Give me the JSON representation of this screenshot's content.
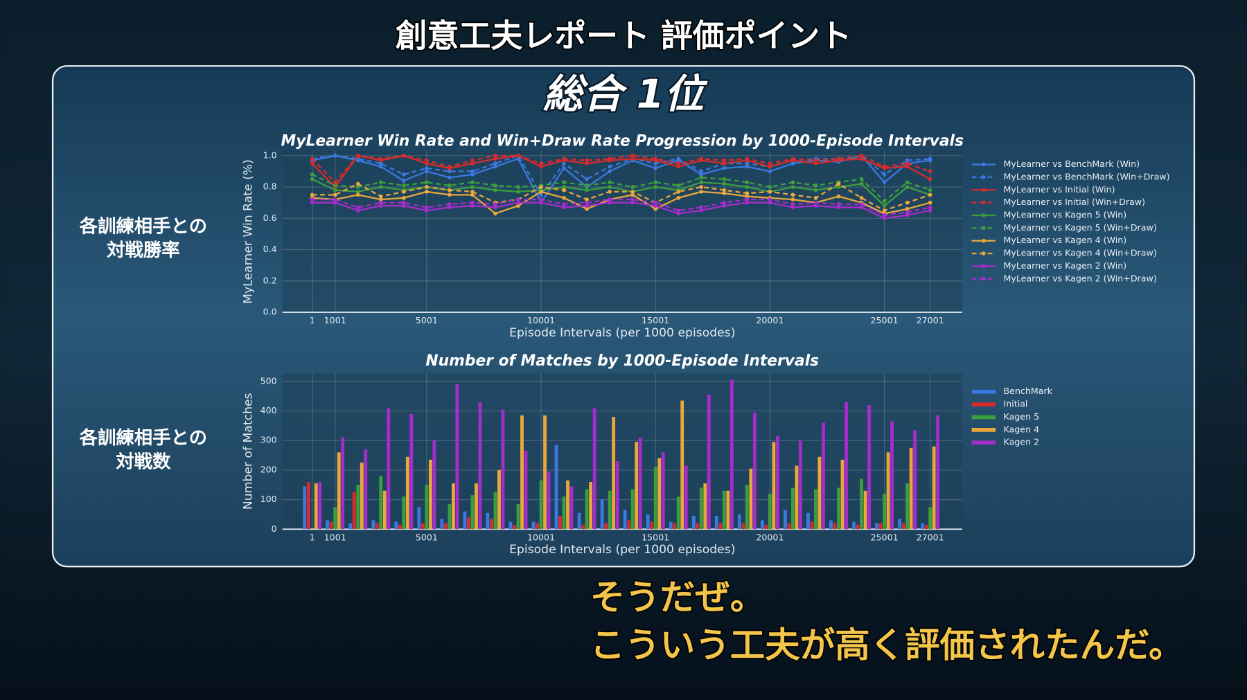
{
  "header": {
    "title": "創意工夫レポート 評価ポイント",
    "rank": "総合 1位"
  },
  "side_labels": [
    [
      "各訓練相手との",
      "対戦勝率"
    ],
    [
      "各訓練相手との",
      "対戦数"
    ]
  ],
  "subtitles": [
    "そうだぜ。",
    "こういう工夫が高く評価されたんだ。"
  ],
  "chart_data": [
    {
      "type": "line",
      "title": "MyLearner Win Rate and Win+Draw Rate Progression by 1000-Episode Intervals",
      "x_label": "Episode Intervals (per 1000 episodes)",
      "y_label": "MyLearner Win Rate (%)",
      "x": [
        1,
        1001,
        2001,
        3001,
        4001,
        5001,
        6001,
        7001,
        8001,
        9001,
        10001,
        11001,
        12001,
        13001,
        14001,
        15001,
        16001,
        17001,
        18001,
        19001,
        20001,
        21001,
        22001,
        23001,
        24001,
        25001,
        26001,
        27001
      ],
      "xlim": [
        -1300,
        28400
      ],
      "xticks": [
        1,
        1001,
        5001,
        10001,
        15001,
        20001,
        25001,
        27001
      ],
      "ylim": [
        0,
        1.03
      ],
      "yticks": [
        {
          "value": 0,
          "label": "0.0"
        },
        0.2,
        0.4,
        0.6,
        0.8,
        {
          "value": 1,
          "label": "1.0"
        }
      ],
      "grid": true,
      "legend": "right",
      "series": [
        {
          "name": "MyLearner vs BenchMark (Win)",
          "color": "#3b78e0",
          "style": "solid",
          "values": [
            0.97,
            1.0,
            0.97,
            0.93,
            0.84,
            0.9,
            0.86,
            0.88,
            0.93,
            0.98,
            0.7,
            0.92,
            0.8,
            0.9,
            0.97,
            0.92,
            0.97,
            0.88,
            0.92,
            0.93,
            0.9,
            0.95,
            0.97,
            0.96,
            1.0,
            0.83,
            0.95,
            0.97
          ]
        },
        {
          "name": "MyLearner vs BenchMark (Win+Draw)",
          "color": "#3b78e0",
          "style": "dashed",
          "values": [
            0.98,
            1.0,
            0.98,
            0.95,
            0.88,
            0.92,
            0.9,
            0.9,
            0.95,
            1.0,
            0.75,
            0.95,
            0.85,
            0.93,
            0.98,
            0.95,
            0.98,
            0.9,
            0.95,
            0.95,
            0.93,
            0.97,
            0.98,
            0.98,
            1.0,
            0.88,
            0.97,
            0.98
          ]
        },
        {
          "name": "MyLearner vs Initial (Win)",
          "color": "#d92b2b",
          "style": "solid",
          "values": [
            0.95,
            0.8,
            1.0,
            0.97,
            1.0,
            0.95,
            0.92,
            0.95,
            0.98,
            1.0,
            0.93,
            0.97,
            0.95,
            0.97,
            0.98,
            0.97,
            0.93,
            0.97,
            0.95,
            0.97,
            0.93,
            0.97,
            0.95,
            0.97,
            0.98,
            0.92,
            0.93,
            0.85
          ]
        },
        {
          "name": "MyLearner vs Initial (Win+Draw)",
          "color": "#d92b2b",
          "style": "dashed",
          "values": [
            0.98,
            0.83,
            1.0,
            0.98,
            1.0,
            0.97,
            0.93,
            0.97,
            1.0,
            1.0,
            0.95,
            0.98,
            0.97,
            0.98,
            1.0,
            0.98,
            0.95,
            0.98,
            0.97,
            0.98,
            0.95,
            0.98,
            0.97,
            0.98,
            1.0,
            0.93,
            0.95,
            0.9
          ]
        },
        {
          "name": "MyLearner vs Kagen 5 (Win)",
          "color": "#3c9e3c",
          "style": "solid",
          "values": [
            0.85,
            0.78,
            0.77,
            0.8,
            0.78,
            0.8,
            0.78,
            0.8,
            0.78,
            0.77,
            0.78,
            0.8,
            0.78,
            0.8,
            0.77,
            0.8,
            0.78,
            0.83,
            0.82,
            0.8,
            0.77,
            0.8,
            0.78,
            0.8,
            0.82,
            0.68,
            0.8,
            0.75
          ]
        },
        {
          "name": "MyLearner vs Kagen 5 (Win+Draw)",
          "color": "#3c9e3c",
          "style": "dashed",
          "values": [
            0.88,
            0.81,
            0.8,
            0.83,
            0.81,
            0.83,
            0.81,
            0.83,
            0.81,
            0.8,
            0.81,
            0.83,
            0.81,
            0.83,
            0.8,
            0.83,
            0.81,
            0.86,
            0.85,
            0.83,
            0.8,
            0.83,
            0.81,
            0.83,
            0.85,
            0.71,
            0.83,
            0.78
          ]
        },
        {
          "name": "MyLearner vs Kagen 4 (Win)",
          "color": "#eaa83c",
          "style": "solid",
          "values": [
            0.73,
            0.72,
            0.75,
            0.72,
            0.73,
            0.77,
            0.75,
            0.75,
            0.63,
            0.68,
            0.77,
            0.73,
            0.66,
            0.72,
            0.75,
            0.66,
            0.73,
            0.77,
            0.76,
            0.74,
            0.73,
            0.72,
            0.7,
            0.74,
            0.7,
            0.63,
            0.66,
            0.7
          ]
        },
        {
          "name": "MyLearner vs Kagen 4 (Win+Draw)",
          "color": "#eaa83c",
          "style": "dashed",
          "values": [
            0.75,
            0.75,
            0.82,
            0.74,
            0.77,
            0.8,
            0.78,
            0.77,
            0.7,
            0.72,
            0.8,
            0.78,
            0.72,
            0.77,
            0.77,
            0.7,
            0.77,
            0.8,
            0.78,
            0.76,
            0.77,
            0.75,
            0.73,
            0.82,
            0.73,
            0.65,
            0.7,
            0.75
          ]
        },
        {
          "name": "MyLearner vs Kagen 2 (Win)",
          "color": "#a62ccc",
          "style": "solid",
          "values": [
            0.7,
            0.7,
            0.65,
            0.68,
            0.68,
            0.65,
            0.67,
            0.68,
            0.67,
            0.7,
            0.7,
            0.67,
            0.68,
            0.7,
            0.7,
            0.68,
            0.63,
            0.65,
            0.68,
            0.7,
            0.7,
            0.67,
            0.68,
            0.67,
            0.67,
            0.6,
            0.62,
            0.65
          ]
        },
        {
          "name": "MyLearner vs Kagen 2 (Win+Draw)",
          "color": "#a62ccc",
          "style": "dashed",
          "values": [
            0.72,
            0.72,
            0.67,
            0.7,
            0.7,
            0.67,
            0.69,
            0.7,
            0.69,
            0.72,
            0.72,
            0.69,
            0.7,
            0.72,
            0.72,
            0.7,
            0.65,
            0.67,
            0.7,
            0.72,
            0.72,
            0.69,
            0.7,
            0.69,
            0.69,
            0.62,
            0.64,
            0.67
          ]
        }
      ]
    },
    {
      "type": "bar",
      "title": "Number of Matches by 1000-Episode Intervals",
      "x_label": "Episode Intervals (per 1000 episodes)",
      "y_label": "Number of Matches",
      "x": [
        1,
        1001,
        2001,
        3001,
        4001,
        5001,
        6001,
        7001,
        8001,
        9001,
        10001,
        11001,
        12001,
        13001,
        14001,
        15001,
        16001,
        17001,
        18001,
        19001,
        20001,
        21001,
        22001,
        23001,
        24001,
        25001,
        26001,
        27001
      ],
      "xlim": [
        -1300,
        28400
      ],
      "xticks": [
        1,
        1001,
        5001,
        10001,
        15001,
        20001,
        25001,
        27001
      ],
      "ylim": [
        0,
        527
      ],
      "yticks": [
        0,
        100,
        200,
        300,
        400,
        500
      ],
      "grid": true,
      "legend": "right",
      "series": [
        {
          "name": "BenchMark",
          "color": "#3b78e0",
          "values": [
            145,
            30,
            20,
            30,
            25,
            75,
            35,
            60,
            55,
            25,
            25,
            285,
            55,
            100,
            65,
            50,
            25,
            45,
            45,
            50,
            30,
            65,
            55,
            30,
            25,
            20,
            35,
            20
          ]
        },
        {
          "name": "Initial",
          "color": "#d92b2b",
          "values": [
            160,
            25,
            125,
            20,
            15,
            20,
            20,
            40,
            35,
            15,
            20,
            45,
            15,
            20,
            30,
            25,
            20,
            20,
            20,
            20,
            15,
            20,
            25,
            20,
            15,
            20,
            20,
            15
          ]
        },
        {
          "name": "Kagen 5",
          "color": "#3c9e3c",
          "values": [
            0,
            75,
            150,
            180,
            110,
            150,
            85,
            115,
            125,
            85,
            165,
            110,
            135,
            130,
            135,
            210,
            110,
            140,
            130,
            150,
            120,
            140,
            135,
            140,
            170,
            120,
            155,
            75
          ]
        },
        {
          "name": "Kagen 4",
          "color": "#eaa83c",
          "values": [
            155,
            260,
            225,
            130,
            245,
            235,
            155,
            155,
            200,
            385,
            385,
            165,
            160,
            380,
            295,
            240,
            435,
            155,
            130,
            205,
            295,
            215,
            245,
            235,
            130,
            260,
            275,
            280
          ]
        },
        {
          "name": "Kagen 2",
          "color": "#a62ccc",
          "values": [
            160,
            310,
            270,
            410,
            390,
            300,
            490,
            430,
            405,
            265,
            195,
            145,
            410,
            230,
            310,
            260,
            215,
            455,
            505,
            395,
            315,
            300,
            360,
            430,
            420,
            365,
            335,
            385
          ]
        }
      ]
    }
  ]
}
